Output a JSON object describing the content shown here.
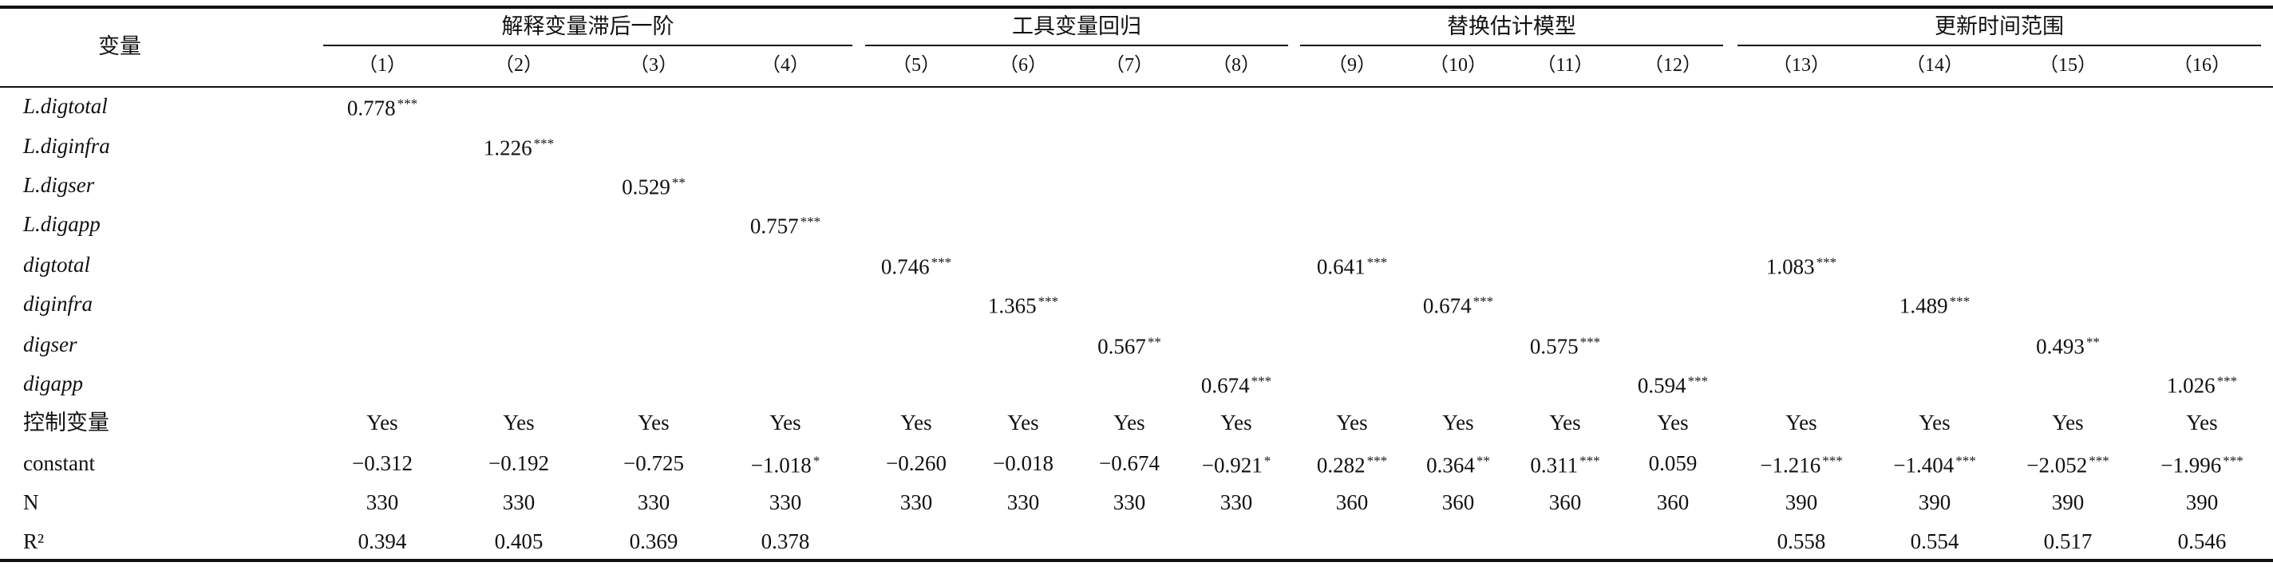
{
  "table": {
    "corner": "变量",
    "groups": [
      "解释变量滞后一阶",
      "工具变量回归",
      "替换估计模型",
      "更新时间范围"
    ],
    "columns": [
      "（1）",
      "（2）",
      "（3）",
      "（4）",
      "（5）",
      "（6）",
      "（7）",
      "（8）",
      "（9）",
      "（10）",
      "（11）",
      "（12）",
      "（13）",
      "（14）",
      "（15）",
      "（16）"
    ],
    "rows": [
      {
        "label": "L.digtotal",
        "cells": [
          {
            "value": "0.778",
            "stars": "***"
          },
          null,
          null,
          null,
          null,
          null,
          null,
          null,
          null,
          null,
          null,
          null,
          null,
          null,
          null,
          null
        ]
      },
      {
        "label": "L.diginfra",
        "cells": [
          null,
          {
            "value": "1.226",
            "stars": "***"
          },
          null,
          null,
          null,
          null,
          null,
          null,
          null,
          null,
          null,
          null,
          null,
          null,
          null,
          null
        ]
      },
      {
        "label": "L.digser",
        "cells": [
          null,
          null,
          {
            "value": "0.529",
            "stars": "**"
          },
          null,
          null,
          null,
          null,
          null,
          null,
          null,
          null,
          null,
          null,
          null,
          null,
          null
        ]
      },
      {
        "label": "L.digapp",
        "cells": [
          null,
          null,
          null,
          {
            "value": "0.757",
            "stars": "***"
          },
          null,
          null,
          null,
          null,
          null,
          null,
          null,
          null,
          null,
          null,
          null,
          null
        ]
      },
      {
        "label": "digtotal",
        "cells": [
          null,
          null,
          null,
          null,
          {
            "value": "0.746",
            "stars": "***"
          },
          null,
          null,
          null,
          {
            "value": "0.641",
            "stars": "***"
          },
          null,
          null,
          null,
          {
            "value": "1.083",
            "stars": "***"
          },
          null,
          null,
          null
        ]
      },
      {
        "label": "diginfra",
        "cells": [
          null,
          null,
          null,
          null,
          null,
          {
            "value": "1.365",
            "stars": "***"
          },
          null,
          null,
          null,
          {
            "value": "0.674",
            "stars": "***"
          },
          null,
          null,
          null,
          {
            "value": "1.489",
            "stars": "***"
          },
          null,
          null
        ]
      },
      {
        "label": "digser",
        "cells": [
          null,
          null,
          null,
          null,
          null,
          null,
          {
            "value": "0.567",
            "stars": "**"
          },
          null,
          null,
          null,
          {
            "value": "0.575",
            "stars": "***"
          },
          null,
          null,
          null,
          {
            "value": "0.493",
            "stars": "**"
          },
          null
        ]
      },
      {
        "label": "digapp",
        "cells": [
          null,
          null,
          null,
          null,
          null,
          null,
          null,
          {
            "value": "0.674",
            "stars": "***"
          },
          null,
          null,
          null,
          {
            "value": "0.594",
            "stars": "***"
          },
          null,
          null,
          null,
          {
            "value": "1.026",
            "stars": "***"
          }
        ]
      },
      {
        "label": "控制变量",
        "cells": [
          "Yes",
          "Yes",
          "Yes",
          "Yes",
          "Yes",
          "Yes",
          "Yes",
          "Yes",
          "Yes",
          "Yes",
          "Yes",
          "Yes",
          "Yes",
          "Yes",
          "Yes",
          "Yes"
        ]
      },
      {
        "label": "constant",
        "cells": [
          "−0.312",
          "−0.192",
          "−0.725",
          {
            "value": "−1.018",
            "stars": "*"
          },
          "−0.260",
          "−0.018",
          "−0.674",
          {
            "value": "−0.921",
            "stars": "*"
          },
          {
            "value": "0.282",
            "stars": "***"
          },
          {
            "value": "0.364",
            "stars": "**"
          },
          {
            "value": "0.311",
            "stars": "***"
          },
          "0.059",
          {
            "value": "−1.216",
            "stars": "***"
          },
          {
            "value": "−1.404",
            "stars": "***"
          },
          {
            "value": "−2.052",
            "stars": "***"
          },
          {
            "value": "−1.996",
            "stars": "***"
          }
        ]
      },
      {
        "label": "N",
        "cells": [
          "330",
          "330",
          "330",
          "330",
          "330",
          "330",
          "330",
          "330",
          "360",
          "360",
          "360",
          "360",
          "390",
          "390",
          "390",
          "390"
        ]
      },
      {
        "label": "R²",
        "cells": [
          "0.394",
          "0.405",
          "0.369",
          "0.378",
          null,
          null,
          null,
          null,
          null,
          null,
          null,
          null,
          "0.558",
          "0.554",
          "0.517",
          "0.546"
        ]
      }
    ]
  }
}
